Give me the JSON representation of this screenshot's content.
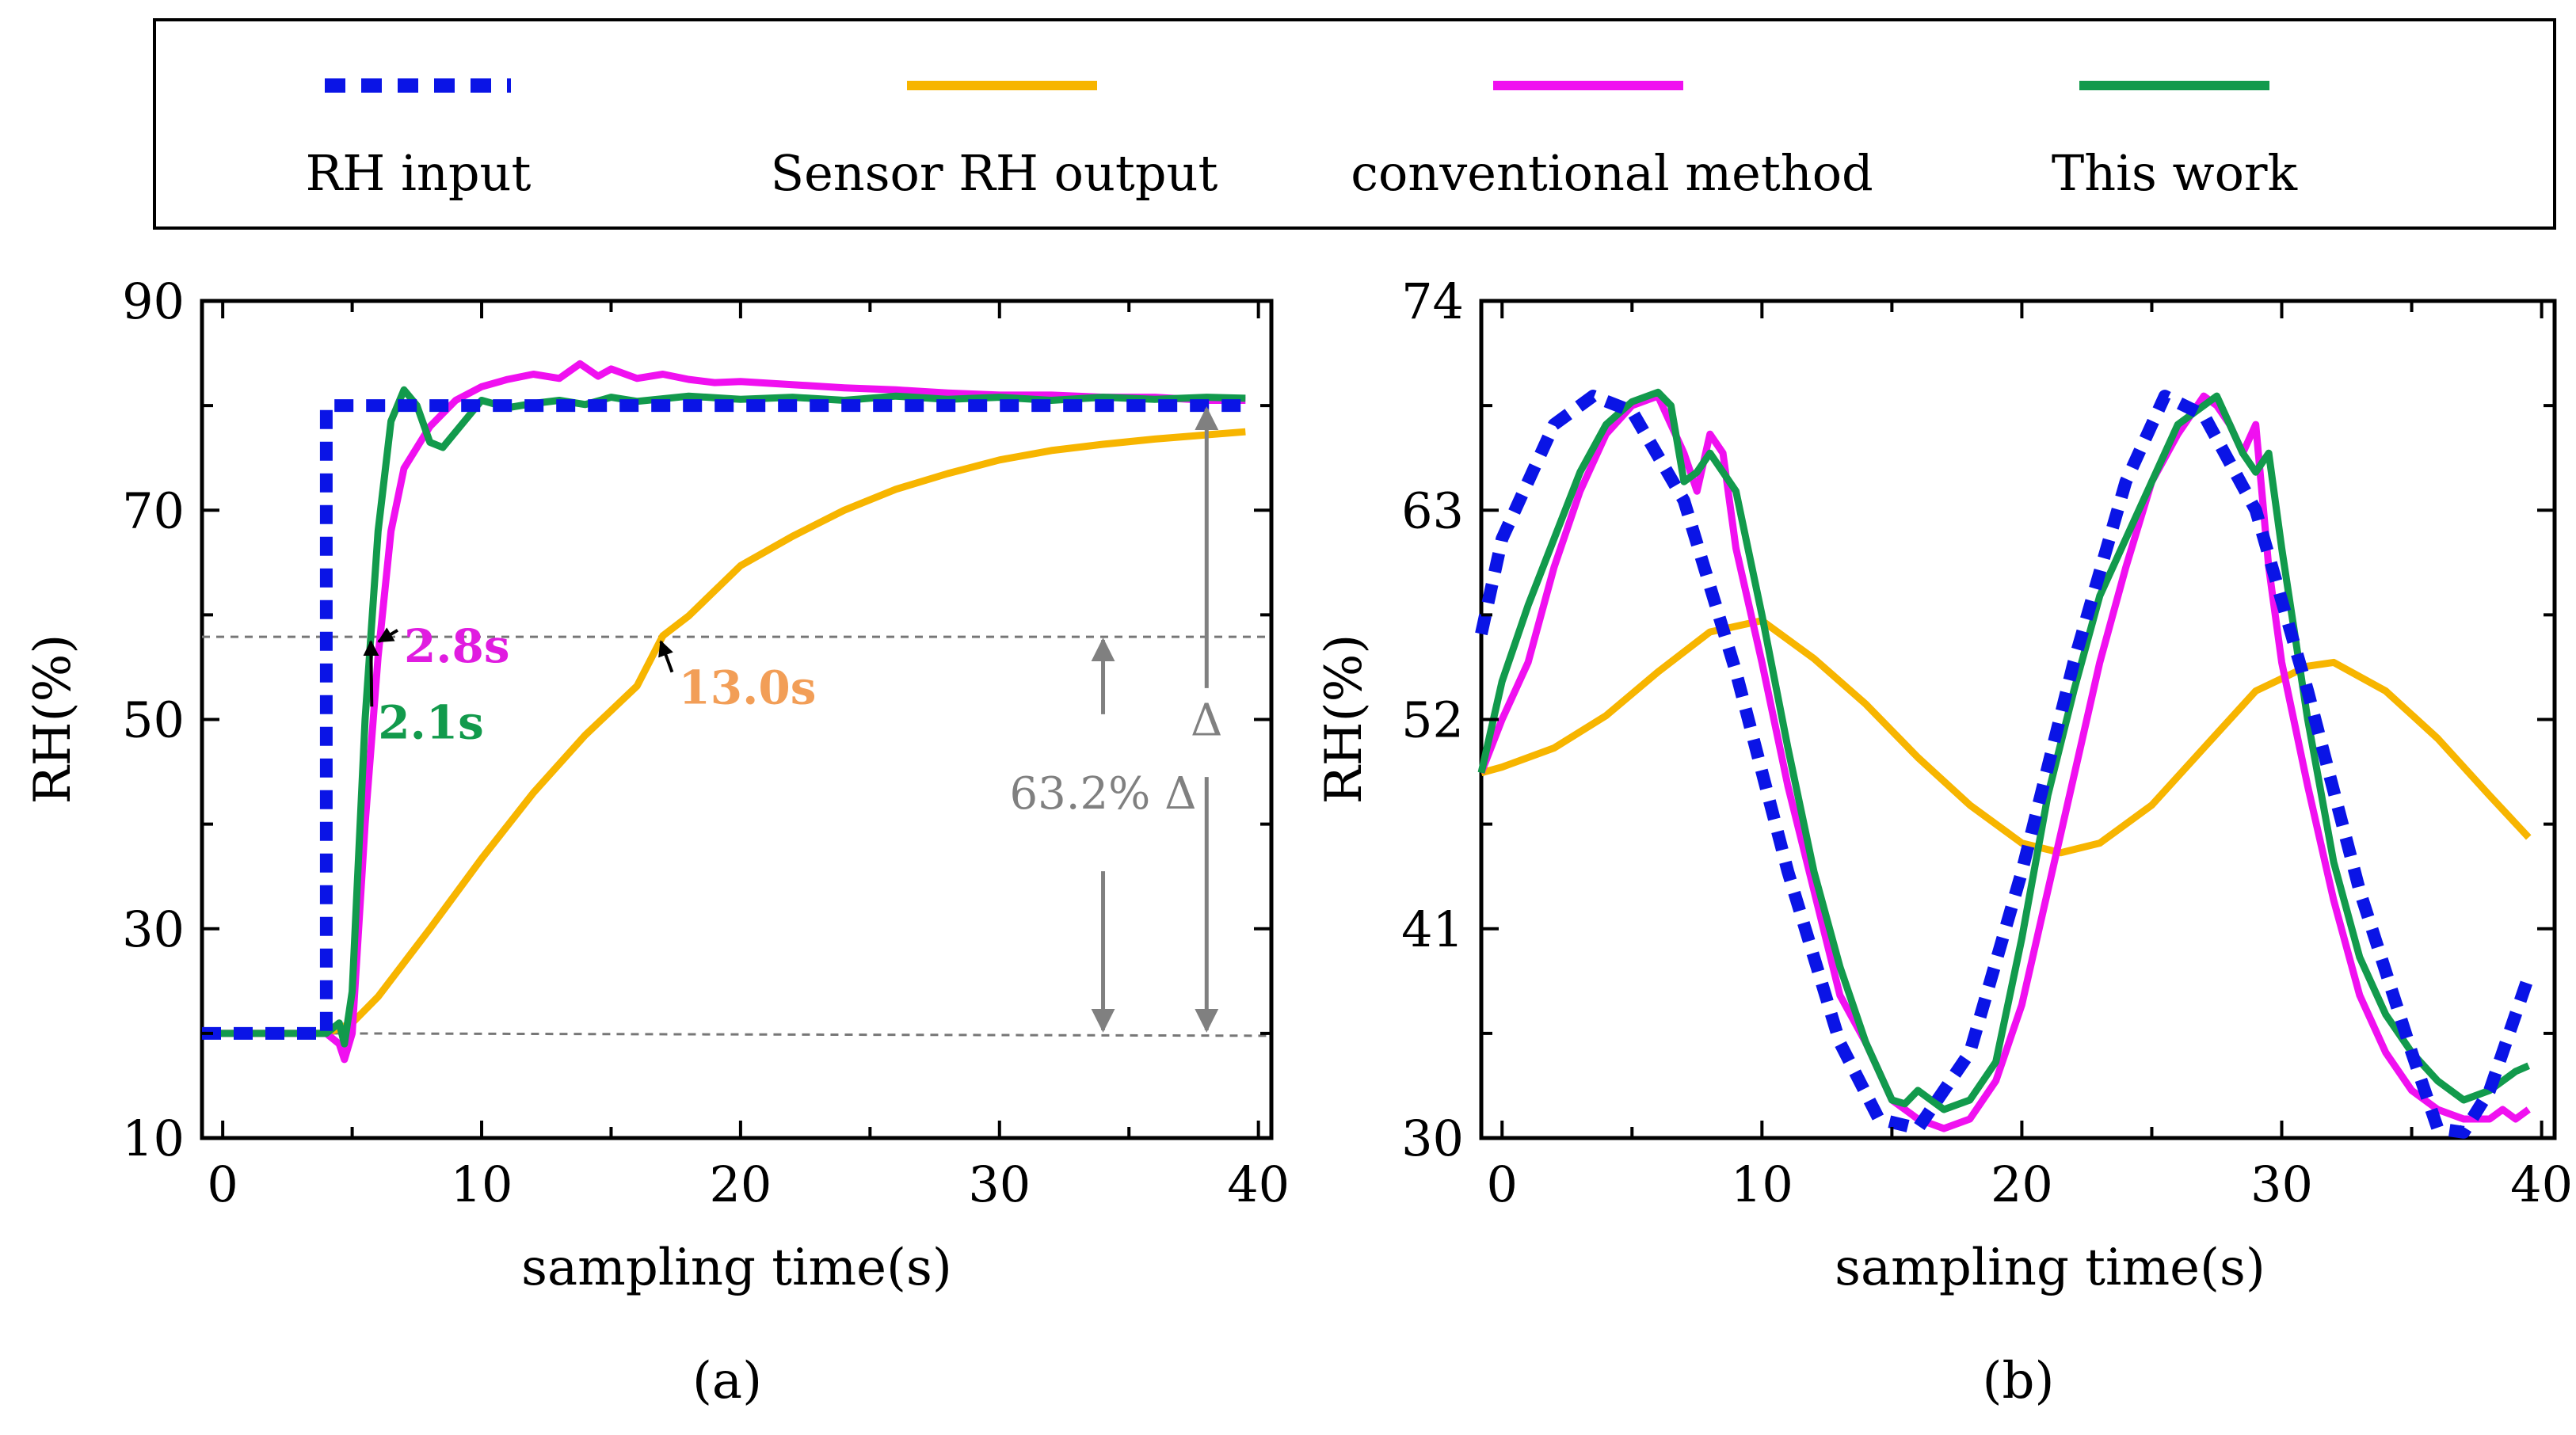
{
  "colors": {
    "rh_input": "#0a14e6",
    "sensor": "#f7b500",
    "conventional": "#f010f0",
    "this_work": "#129a4c",
    "annotation_gray": "#808080",
    "label_2_8": "#e01ce0",
    "label_2_1": "#129a4c",
    "label_13": "#f29e57"
  },
  "legend": {
    "items": [
      {
        "key": "rh_input",
        "label": "RH input",
        "style": "dotted"
      },
      {
        "key": "sensor",
        "label": "Sensor RH output",
        "style": "solid"
      },
      {
        "key": "conventional",
        "label": "conventional method",
        "style": "solid"
      },
      {
        "key": "this_work",
        "label": "This work",
        "style": "solid"
      }
    ]
  },
  "chart_data": [
    {
      "type": "line",
      "caption": "(a)",
      "xlabel": "sampling time(s)",
      "ylabel": "RH(%)",
      "xlim": [
        -0.8,
        40.5
      ],
      "ylim": [
        10,
        90
      ],
      "xticks": [
        0,
        10,
        20,
        30,
        40
      ],
      "yticks": [
        10,
        30,
        50,
        70,
        90
      ],
      "series": [
        {
          "key": "rh_input",
          "name": "RH input",
          "x": [
            -0.8,
            4.0,
            4.0,
            39.5
          ],
          "y": [
            20,
            20,
            80,
            80
          ]
        },
        {
          "key": "sensor",
          "name": "Sensor RH output",
          "x": [
            -0.8,
            4.0,
            4.5,
            5.0,
            6,
            8,
            10,
            12,
            14,
            16,
            17,
            18,
            20,
            22,
            24,
            26,
            28,
            30,
            32,
            34,
            36,
            38,
            39.5
          ],
          "y": [
            20,
            20,
            20.5,
            21,
            23.5,
            30,
            36.7,
            43,
            48.5,
            53.2,
            58,
            59.9,
            64.7,
            67.5,
            70,
            72,
            73.5,
            74.8,
            75.7,
            76.3,
            76.8,
            77.2,
            77.5
          ]
        },
        {
          "key": "conventional",
          "name": "conventional method",
          "x": [
            -0.8,
            4.0,
            4.5,
            4.7,
            5.0,
            5.5,
            6.0,
            6.5,
            7,
            8,
            9,
            10,
            11,
            12,
            13,
            13.8,
            14.5,
            15,
            16,
            17,
            18,
            19,
            20,
            22,
            24,
            26,
            28,
            30,
            32,
            34,
            36,
            38,
            39.5
          ],
          "y": [
            20,
            20,
            19,
            17.5,
            20,
            40,
            56,
            68,
            74,
            78,
            80.5,
            81.8,
            82.5,
            83,
            82.6,
            84,
            82.8,
            83.5,
            82.6,
            83,
            82.5,
            82.2,
            82.3,
            82,
            81.7,
            81.5,
            81.2,
            81,
            81,
            80.8,
            80.8,
            80.5,
            80.5
          ]
        },
        {
          "key": "this_work",
          "name": "This work",
          "x": [
            -0.8,
            4.0,
            4.5,
            4.7,
            5.0,
            5.5,
            6.0,
            6.5,
            7.0,
            7.5,
            8.0,
            8.5,
            9.0,
            9.5,
            10,
            11,
            12,
            13,
            14,
            15,
            16,
            18,
            20,
            22,
            24,
            26,
            28,
            30,
            32,
            34,
            36,
            38,
            39.5
          ],
          "y": [
            20,
            20,
            21,
            19,
            24,
            50,
            68,
            78.5,
            81.5,
            80,
            76.5,
            76,
            77.5,
            79,
            80.5,
            79.8,
            80.2,
            80.5,
            80.1,
            80.8,
            80.4,
            80.9,
            80.6,
            80.8,
            80.5,
            80.9,
            80.6,
            80.8,
            80.5,
            80.8,
            80.6,
            80.8,
            80.7
          ]
        }
      ],
      "guides": {
        "y_low": 20,
        "y_63": 57.9,
        "x_end": 39.5
      },
      "annotations": [
        {
          "key": "label_2_8",
          "text": "2.8s",
          "x": 7.0,
          "y": 55.5,
          "target_x": 5.9,
          "target_y": 57.9
        },
        {
          "key": "label_2_1",
          "text": "2.1s",
          "x": 6.0,
          "y": 48.2,
          "target_x": 5.6,
          "target_y": 57.9
        },
        {
          "key": "label_13",
          "text": "13.0s",
          "x": 17.6,
          "y": 51.5,
          "target_x": 16.8,
          "target_y": 57.9
        },
        {
          "key": "annotation_gray",
          "text": "63.2% Δ",
          "x": 34.0,
          "y": 41.5
        },
        {
          "key": "annotation_gray",
          "text": "Δ",
          "x": 38.0,
          "y": 48.5
        }
      ]
    },
    {
      "type": "line",
      "caption": "(b)",
      "xlabel": "sampling time(s)",
      "ylabel": "RH(%)",
      "xlim": [
        -0.8,
        40.5
      ],
      "ylim": [
        30,
        74
      ],
      "xticks": [
        0,
        10,
        20,
        30,
        40
      ],
      "yticks": [
        30,
        41,
        52,
        63,
        74
      ],
      "minor_yticks": [
        35.5,
        46.5,
        57.5,
        68.5
      ],
      "series": [
        {
          "key": "rh_input",
          "name": "RH input",
          "x": [
            -0.8,
            0,
            2,
            3.5,
            5,
            7,
            9,
            11,
            13,
            14.5,
            16,
            18,
            20,
            22,
            24,
            25.5,
            27,
            29,
            31,
            33,
            35,
            36,
            37,
            38,
            39.5
          ],
          "y": [
            56.5,
            61.5,
            67.5,
            69,
            68.2,
            63.5,
            54.5,
            44,
            35,
            31,
            30.5,
            34.5,
            44,
            55,
            64.5,
            69,
            68,
            63,
            53.5,
            43,
            34.5,
            30.5,
            30.3,
            32.5,
            38.5
          ]
        },
        {
          "key": "sensor",
          "name": "Sensor RH output",
          "x": [
            -0.8,
            0,
            2,
            4,
            6,
            8,
            10,
            12,
            14,
            16,
            18,
            20,
            21.5,
            23,
            25,
            27,
            29,
            31,
            32,
            34,
            36,
            38,
            39.5
          ],
          "y": [
            49.2,
            49.5,
            50.5,
            52.2,
            54.5,
            56.6,
            57.2,
            55.2,
            52.8,
            50,
            47.5,
            45.5,
            45,
            45.5,
            47.5,
            50.5,
            53.5,
            54.8,
            55,
            53.5,
            51,
            48,
            45.8
          ]
        },
        {
          "key": "conventional",
          "name": "conventional method",
          "x": [
            -0.8,
            0,
            1,
            2,
            3,
            4,
            5,
            6,
            7,
            7.5,
            8,
            8.5,
            9,
            10,
            11,
            12,
            13,
            14,
            15,
            16,
            17,
            18,
            19,
            20,
            21,
            22,
            23,
            24,
            25,
            26,
            27,
            27.5,
            28,
            28.5,
            29,
            29.5,
            30,
            31,
            32,
            33,
            34,
            35,
            36,
            37,
            38,
            38.5,
            39,
            39.5
          ],
          "y": [
            49.2,
            52,
            55,
            60,
            64,
            67,
            68.5,
            69,
            66,
            64,
            67,
            66,
            61,
            55,
            48.5,
            43,
            37.5,
            35,
            32,
            31,
            30.5,
            31,
            33,
            37,
            43,
            49,
            55,
            60,
            64.5,
            67,
            69,
            68.5,
            67.5,
            66,
            67.5,
            60,
            55,
            48.5,
            42.5,
            37.5,
            34.5,
            32.5,
            31.5,
            31,
            31,
            31.5,
            31,
            31.5
          ]
        },
        {
          "key": "this_work",
          "name": "This work",
          "x": [
            -0.8,
            0,
            1,
            2,
            3,
            4,
            5,
            6,
            6.5,
            7,
            7.5,
            8,
            9,
            10,
            11,
            12,
            13,
            14,
            15,
            15.5,
            16,
            17,
            18,
            19,
            20,
            21,
            22,
            23,
            24,
            25,
            26,
            27,
            27.5,
            28,
            28.5,
            29,
            29.5,
            30,
            31,
            32,
            33,
            34,
            35,
            36,
            37,
            38,
            39,
            39.5
          ],
          "y": [
            49.2,
            54,
            58,
            61.5,
            65,
            67.5,
            68.7,
            69.2,
            68.5,
            64.5,
            65,
            66,
            64,
            57.5,
            50.5,
            44,
            39,
            35,
            32,
            31.8,
            32.5,
            31.5,
            32,
            34,
            40.5,
            48,
            53.5,
            58.5,
            61.5,
            64.5,
            67.5,
            68.5,
            69,
            67.5,
            66,
            65,
            66,
            61,
            52,
            44.5,
            39.5,
            36.5,
            34.5,
            33,
            32,
            32.5,
            33.5,
            33.8
          ]
        }
      ]
    }
  ]
}
